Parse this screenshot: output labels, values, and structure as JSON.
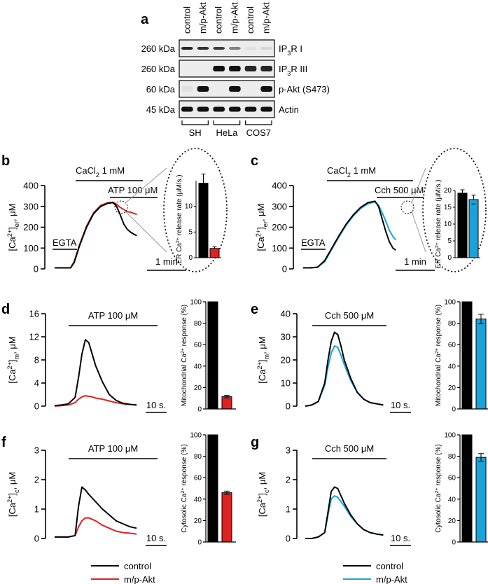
{
  "colors": {
    "control": "#000000",
    "mp_akt_hela": "#dd2222",
    "mp_akt_cos7": "#1aa3d9",
    "blot_bg": "#ececec"
  },
  "western": {
    "letter": "a",
    "lanes": [
      "control",
      "m/p-Akt",
      "control",
      "m/p-Akt",
      "control",
      "m/p-Akt"
    ],
    "rows": [
      {
        "kda": "260 kDa",
        "label_main": "IP",
        "label_sub": "3",
        "label_rest": "R I",
        "bands": [
          0.9,
          0.85,
          0.8,
          0.5,
          0.05,
          0.1
        ]
      },
      {
        "kda": "260 kDa",
        "label_main": "IP",
        "label_sub": "3",
        "label_rest": "R III",
        "bands": [
          0,
          0,
          1,
          1,
          0.9,
          0.9
        ]
      },
      {
        "kda": "60 kDa",
        "label_main": "p-Akt (S473)",
        "label_sub": "",
        "label_rest": "",
        "bands": [
          0.05,
          1,
          0,
          1,
          0,
          1
        ]
      },
      {
        "kda": "45 kDa",
        "label_main": "Actin",
        "label_sub": "",
        "label_rest": "",
        "bands": [
          1,
          1,
          1,
          1,
          1,
          1
        ]
      }
    ],
    "cell_lines": [
      "SH",
      "HeLa",
      "COS7"
    ]
  },
  "chart_data": [
    {
      "panel": "b",
      "type": "line",
      "ylabel": "[Ca2+]er, μM",
      "ylim": [
        0,
        400
      ],
      "yticks": [
        0,
        100,
        200,
        300,
        400
      ],
      "xlim": [
        0,
        310
      ],
      "stimuli": [
        "EGTA",
        "CaCl2 1 mM",
        "ATP 100 μM"
      ],
      "scale_bar": "1 min",
      "series": [
        {
          "name": "control",
          "x": [
            0,
            30,
            45,
            55,
            70,
            90,
            110,
            130,
            150,
            165,
            175,
            185,
            195,
            205,
            215,
            225,
            232
          ],
          "values": [
            5,
            5,
            5,
            30,
            110,
            200,
            265,
            300,
            315,
            318,
            300,
            260,
            215,
            190,
            175,
            165,
            160
          ]
        },
        {
          "name": "m/p-Akt",
          "x": [
            0,
            30,
            45,
            55,
            70,
            90,
            110,
            130,
            150,
            165,
            175,
            185,
            195,
            205,
            215,
            225,
            232
          ],
          "values": [
            5,
            5,
            5,
            35,
            115,
            205,
            270,
            305,
            318,
            320,
            310,
            295,
            285,
            275,
            272,
            265,
            262
          ]
        }
      ],
      "inset": {
        "ylabel": "ER Ca2+ release rate (μM/s.)",
        "ylim": [
          0,
          15
        ],
        "yticks": [
          0,
          5,
          10
        ],
        "values": [
          14.5,
          1.8
        ],
        "errors": [
          1.8,
          0.3
        ]
      }
    },
    {
      "panel": "c",
      "type": "line",
      "ylabel": "[Ca2+]er, μM",
      "ylim": [
        0,
        400
      ],
      "yticks": [
        0,
        100,
        200,
        300,
        400
      ],
      "xlim": [
        0,
        310
      ],
      "stimuli": [
        "EGTA",
        "CaCl2 1 mM",
        "Cch 500 μM"
      ],
      "scale_bar": "1 min",
      "series": [
        {
          "name": "control",
          "x": [
            0,
            20,
            40,
            60,
            80,
            100,
            120,
            140,
            160,
            180,
            200,
            210,
            220,
            230,
            240,
            250,
            258
          ],
          "values": [
            5,
            5,
            8,
            40,
            100,
            160,
            215,
            260,
            295,
            318,
            325,
            300,
            240,
            180,
            130,
            100,
            90
          ]
        },
        {
          "name": "m/p-Akt",
          "x": [
            0,
            20,
            40,
            60,
            80,
            100,
            120,
            140,
            160,
            180,
            200,
            210,
            220,
            230,
            240,
            250,
            258
          ],
          "values": [
            5,
            5,
            8,
            35,
            95,
            155,
            210,
            255,
            290,
            312,
            322,
            305,
            270,
            230,
            185,
            155,
            140
          ]
        }
      ],
      "inset": {
        "ylabel": "ER Ca2+ release rate (μM/s.)",
        "ylim": [
          0,
          20
        ],
        "yticks": [
          0,
          5,
          10,
          15,
          20
        ],
        "values": [
          19.2,
          17.3
        ],
        "errors": [
          1.0,
          1.3
        ]
      }
    },
    {
      "panel": "d",
      "type": "line",
      "ylabel": "[Ca2+]m, μM",
      "ylim": [
        0,
        16
      ],
      "yticks": [
        0,
        4,
        8,
        12,
        16
      ],
      "xlim": [
        0,
        125
      ],
      "stimulus": "ATP 100 μM",
      "scale_bar": "10 s.",
      "series": [
        {
          "name": "control",
          "x": [
            0,
            10,
            20,
            30,
            35,
            40,
            45,
            50,
            55,
            60,
            70,
            80,
            90,
            100,
            110,
            120
          ],
          "values": [
            0.1,
            0.2,
            0.4,
            1.5,
            5,
            9,
            11.5,
            11,
            9,
            7,
            4.2,
            2,
            1,
            0.5,
            0.3,
            0.2
          ]
        },
        {
          "name": "m/p-Akt",
          "x": [
            0,
            10,
            20,
            30,
            35,
            40,
            45,
            50,
            55,
            60,
            70,
            80,
            90,
            100,
            110,
            120
          ],
          "values": [
            0,
            0.1,
            0.2,
            0.6,
            1.2,
            1.6,
            1.8,
            1.7,
            1.6,
            1.4,
            1.2,
            0.9,
            0.6,
            0.4,
            0.3,
            0.2
          ]
        }
      ],
      "bar": {
        "ylabel": "Mitochondrial Ca2+ response (%)",
        "ylim": [
          0,
          100
        ],
        "yticks": [
          0,
          20,
          40,
          60,
          80,
          100
        ],
        "values": [
          100,
          11.5
        ],
        "errors": [
          0,
          1.2
        ]
      }
    },
    {
      "panel": "e",
      "type": "line",
      "ylabel": "[Ca2+]m, μM",
      "ylim": [
        0,
        40
      ],
      "yticks": [
        0,
        10,
        20,
        30,
        40
      ],
      "xlim": [
        0,
        125
      ],
      "stimulus": "Cch 500 μM",
      "scale_bar": "10 s.",
      "series": [
        {
          "name": "control",
          "x": [
            0,
            10,
            20,
            30,
            35,
            40,
            45,
            50,
            55,
            60,
            70,
            80,
            90,
            100,
            110,
            120
          ],
          "values": [
            0,
            0.5,
            2,
            10,
            20,
            28,
            32,
            31,
            26,
            20,
            12,
            6,
            3,
            1.5,
            1,
            0.5
          ]
        },
        {
          "name": "m/p-Akt",
          "x": [
            0,
            10,
            20,
            30,
            35,
            40,
            45,
            50,
            55,
            60,
            70,
            80,
            90,
            100,
            110,
            120
          ],
          "values": [
            0,
            0.5,
            2,
            9,
            17,
            23,
            26,
            25.5,
            22,
            18,
            11,
            6,
            3,
            1.5,
            1,
            0.5
          ]
        }
      ],
      "bar": {
        "ylabel": "Mitochondrial Ca2+ response (%)",
        "ylim": [
          0,
          100
        ],
        "yticks": [
          0,
          20,
          40,
          60,
          80,
          100
        ],
        "values": [
          100,
          84
        ],
        "errors": [
          0,
          4.5
        ]
      }
    },
    {
      "panel": "f",
      "type": "line",
      "ylabel": "[Ca2+]c, μM",
      "ylim": [
        0,
        3
      ],
      "yticks": [
        0,
        1,
        2,
        3
      ],
      "xlim": [
        0,
        125
      ],
      "stimulus": "ATP 100 μM",
      "scale_bar": "10 s.",
      "series": [
        {
          "name": "control",
          "x": [
            0,
            10,
            20,
            30,
            35,
            40,
            45,
            50,
            60,
            70,
            80,
            90,
            100,
            110,
            120
          ],
          "values": [
            0.05,
            0.05,
            0.05,
            0.1,
            1.1,
            1.75,
            1.65,
            1.5,
            1.25,
            1.0,
            0.8,
            0.6,
            0.5,
            0.4,
            0.35
          ]
        },
        {
          "name": "m/p-Akt",
          "x": [
            0,
            10,
            20,
            30,
            35,
            40,
            45,
            50,
            60,
            70,
            80,
            90,
            100,
            110,
            120
          ],
          "values": [
            0.05,
            0.05,
            0.05,
            0.1,
            0.4,
            0.6,
            0.7,
            0.7,
            0.6,
            0.45,
            0.35,
            0.25,
            0.2,
            0.18,
            0.15
          ]
        }
      ],
      "bar": {
        "ylabel": "Cytosolic Ca2+ response (%)",
        "ylim": [
          0,
          100
        ],
        "yticks": [
          0,
          20,
          40,
          60,
          80,
          100
        ],
        "values": [
          100,
          46
        ],
        "errors": [
          0,
          1.5
        ]
      }
    },
    {
      "panel": "g",
      "type": "line",
      "ylabel": "[Ca2+]c, μM",
      "ylim": [
        0,
        3
      ],
      "yticks": [
        0,
        1,
        2,
        3
      ],
      "xlim": [
        0,
        125
      ],
      "stimulus": "Cch 500 μM",
      "scale_bar": "10 s.",
      "series": [
        {
          "name": "control",
          "x": [
            0,
            10,
            20,
            30,
            35,
            40,
            45,
            50,
            60,
            70,
            80,
            90,
            100,
            110,
            120
          ],
          "values": [
            0,
            0,
            0.05,
            0.2,
            0.9,
            1.6,
            1.75,
            1.7,
            1.2,
            0.8,
            0.5,
            0.3,
            0.2,
            0.15,
            0.12
          ]
        },
        {
          "name": "m/p-Akt",
          "x": [
            0,
            10,
            20,
            30,
            35,
            40,
            45,
            50,
            60,
            70,
            80,
            90,
            100,
            110,
            120
          ],
          "values": [
            0,
            0,
            0.05,
            0.2,
            0.8,
            1.35,
            1.45,
            1.4,
            1.1,
            0.75,
            0.5,
            0.3,
            0.2,
            0.15,
            0.12
          ]
        }
      ],
      "bar": {
        "ylabel": "Cytosolic Ca2+ response (%)",
        "ylim": [
          0,
          100
        ],
        "yticks": [
          0,
          20,
          40,
          60,
          80,
          100
        ],
        "values": [
          100,
          79
        ],
        "errors": [
          0,
          3.5
        ]
      }
    }
  ],
  "legend": {
    "control": "control",
    "treated": "m/p-Akt"
  }
}
